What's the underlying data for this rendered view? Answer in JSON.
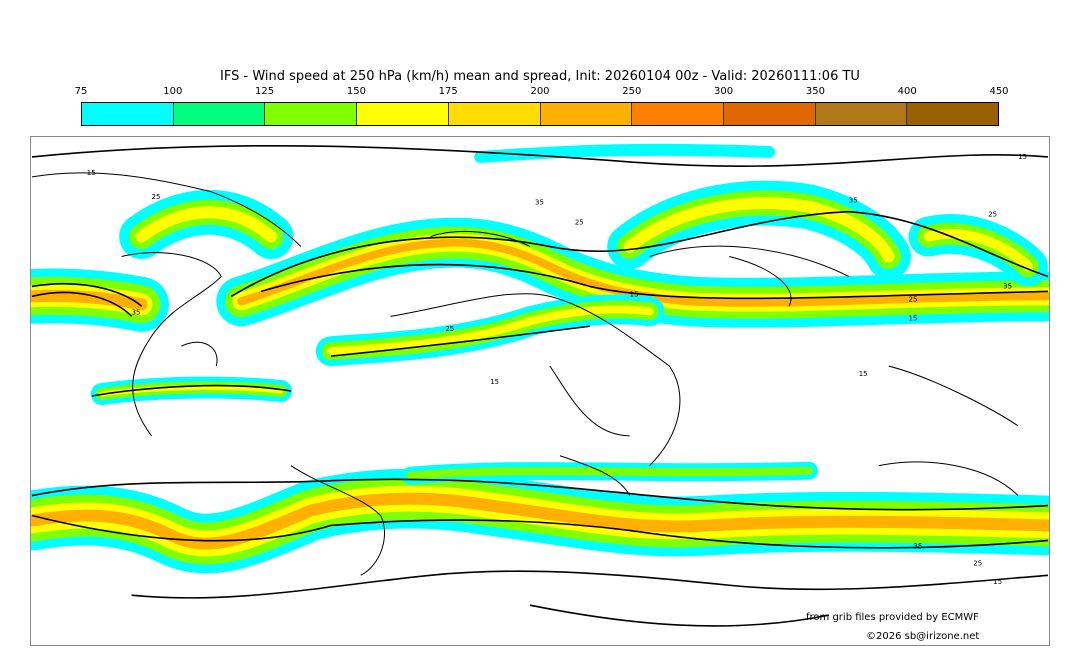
{
  "title": "IFS - Wind speed at 250 hPa (km/h) mean and spread, Init: 20260104 00z - Valid: 20260111:06 TU",
  "legend": {
    "ticks": [
      "75",
      "100",
      "125",
      "150",
      "175",
      "200",
      "250",
      "300",
      "350",
      "400",
      "450"
    ],
    "colors": [
      "#00ffff",
      "#00ff80",
      "#80ff00",
      "#ffff00",
      "#ffdd00",
      "#ffb000",
      "#ff8000",
      "#e06800",
      "#b07818",
      "#986000"
    ]
  },
  "contour_labels": [
    "15",
    "25",
    "35",
    "25",
    "35",
    "15",
    "35",
    "25",
    "15",
    "15",
    "25",
    "15",
    "35",
    "25",
    "15",
    "35",
    "25",
    "15"
  ],
  "credits": {
    "source": "from grib files provided by ECMWF",
    "copyright": "©2026 sb@irizone.net"
  }
}
